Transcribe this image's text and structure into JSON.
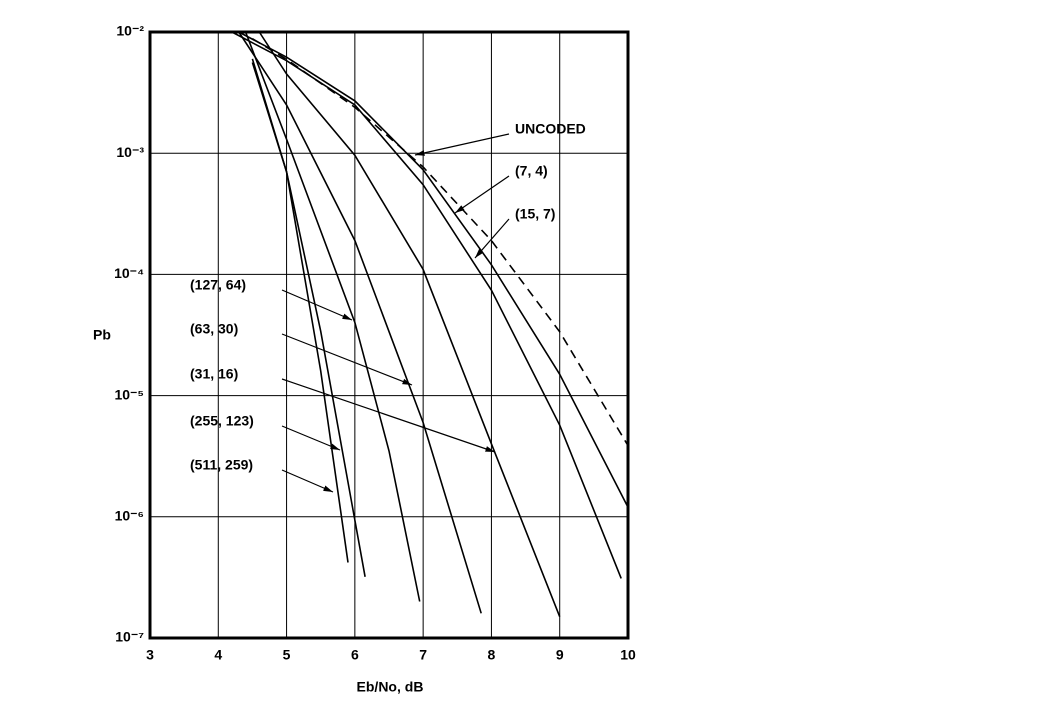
{
  "chart_data": {
    "type": "line",
    "x_label": "Eb/No, dB",
    "y_label": "Pb",
    "xlim": [
      3,
      10
    ],
    "xticks": [
      3,
      4,
      5,
      6,
      7,
      8,
      9,
      10
    ],
    "ylim": [
      1e-07,
      0.01
    ],
    "yticks": [
      {
        "value": 0.01,
        "label": "10⁻²"
      },
      {
        "value": 0.001,
        "label": "10⁻³"
      },
      {
        "value": 0.0001,
        "label": "10⁻⁴"
      },
      {
        "value": 1e-05,
        "label": "10⁻⁵"
      },
      {
        "value": 1e-06,
        "label": "10⁻⁶"
      },
      {
        "value": 1e-07,
        "label": "10⁻⁷"
      }
    ],
    "log_y": true,
    "grid": true,
    "series": [
      {
        "name": "UNCODED",
        "color": "#000000",
        "style": "dashed",
        "x": [
          4.5,
          5,
          6,
          7,
          8,
          9,
          10
        ],
        "values": [
          0.0088,
          0.00595,
          0.00239,
          0.00077,
          0.00019,
          3.36e-05,
          3.87e-06
        ]
      },
      {
        "name": "(7, 4)",
        "color": "#000000",
        "style": "solid",
        "x": [
          4.3,
          5,
          6,
          7,
          8,
          9,
          10
        ],
        "values": [
          0.01,
          0.0062,
          0.0027,
          0.00073,
          0.00012,
          1.5e-05,
          1.2e-06
        ]
      },
      {
        "name": "(15, 7)",
        "color": "#000000",
        "style": "solid",
        "x": [
          4.2,
          5,
          6,
          7,
          8,
          9,
          9.9
        ],
        "values": [
          0.01,
          0.0058,
          0.0025,
          0.00055,
          7.4e-05,
          5.7e-06,
          3.1e-07
        ]
      },
      {
        "name": "(127, 64)",
        "color": "#000000",
        "style": "solid",
        "x": [
          4.4,
          5,
          6,
          6.5,
          6.95
        ],
        "values": [
          0.01,
          0.0013,
          4e-05,
          3.5e-06,
          2e-07
        ]
      },
      {
        "name": "(63, 30)",
        "color": "#000000",
        "style": "solid",
        "x": [
          4.3,
          5,
          6,
          7,
          7.85
        ],
        "values": [
          0.01,
          0.0025,
          0.00019,
          6e-06,
          1.6e-07
        ]
      },
      {
        "name": "(31, 16)",
        "color": "#000000",
        "style": "solid",
        "x": [
          4.6,
          5,
          6,
          7,
          8,
          9
        ],
        "values": [
          0.01,
          0.0045,
          0.00096,
          0.00011,
          4e-06,
          1.5e-07
        ]
      },
      {
        "name": "(255, 123)",
        "color": "#000000",
        "style": "solid",
        "x": [
          4.5,
          5,
          5.5,
          6.15
        ],
        "values": [
          0.006,
          0.0007,
          3.4e-05,
          3.2e-07
        ]
      },
      {
        "name": "(511, 259)",
        "color": "#000000",
        "style": "solid",
        "x": [
          4.5,
          5,
          5.5,
          5.9
        ],
        "values": [
          0.0056,
          0.0007,
          1.6e-05,
          4.2e-07
        ]
      }
    ]
  }
}
